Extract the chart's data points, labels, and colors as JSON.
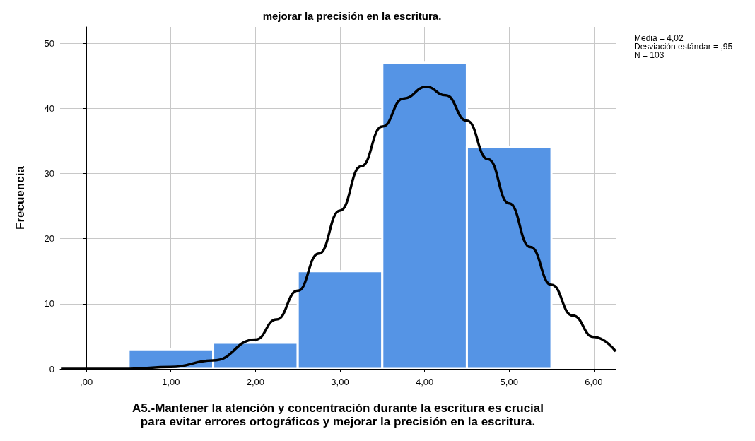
{
  "chart_data": {
    "type": "histogram",
    "title": "mejorar la precisión en la escritura.",
    "xlabel": "A5.-Mantener la atención y concentración durante la escritura es crucial\npara evitar errores ortográficos y mejorar la precisión en la escritura.",
    "ylabel": "Frecuencia",
    "bins": [
      0.5,
      1.5,
      2.5,
      3.5,
      4.5,
      5.5
    ],
    "values": [
      3,
      4,
      15,
      47,
      34
    ],
    "color": "#5594e5",
    "series": [
      {
        "type": "line",
        "color": "#000000",
        "x": [
          -0.3,
          0,
          0.5,
          1,
          1.5,
          2,
          2.25,
          2.5,
          2.75,
          3,
          3.25,
          3.5,
          3.75,
          4.02,
          4.25,
          4.5,
          4.75,
          5,
          5.25,
          5.5,
          5.75,
          6,
          6.26
        ],
        "values": [
          0,
          0,
          0,
          0.3,
          1.3,
          4.5,
          7.6,
          12,
          17.7,
          24.3,
          31.1,
          37.2,
          41.5,
          43.3,
          42,
          38.1,
          32.2,
          25.4,
          18.7,
          12.9,
          8.2,
          4.9,
          2.7
        ]
      }
    ],
    "xlim": [
      -0.31,
      6.26
    ],
    "xticks": [
      {
        "value": 0,
        "label": ",00"
      },
      {
        "value": 1,
        "label": "1,00"
      },
      {
        "value": 2,
        "label": "2,00"
      },
      {
        "value": 3,
        "label": "3,00"
      },
      {
        "value": 4,
        "label": "4,00"
      },
      {
        "value": 5,
        "label": "5,00"
      },
      {
        "value": 6,
        "label": "6,00"
      }
    ],
    "ylim": [
      0,
      52.5
    ],
    "yticks": [
      0,
      10,
      20,
      30,
      40,
      50
    ],
    "grid": true,
    "annotations": [
      "Media = 4,02\nDesviación estándar = ,95\nN = 103"
    ]
  }
}
